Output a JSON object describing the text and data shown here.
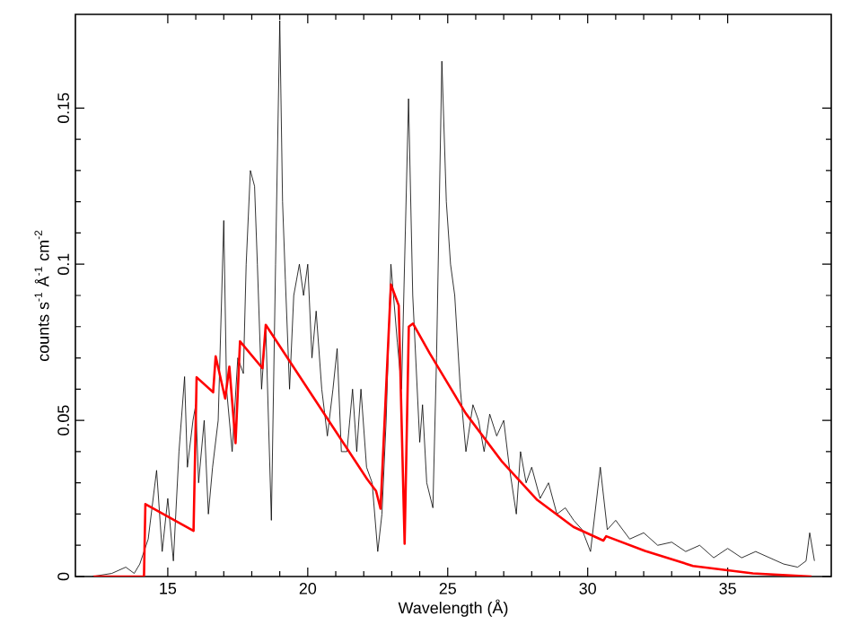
{
  "chart_data": {
    "type": "line",
    "xlabel": "Wavelength (Å)",
    "ylabel": "counts s$^{-1}$ Å$^{-1}$ cm$^{-2}$",
    "xlim": [
      11.7,
      38.7
    ],
    "ylim": [
      0,
      0.18
    ],
    "xticks": [
      15,
      20,
      25,
      30,
      35
    ],
    "yticks": [
      0,
      0.05,
      0.1,
      0.15
    ],
    "marker": "none",
    "line_style": "solid",
    "series": [
      {
        "color": "#000000",
        "x": [
          12.3,
          13.0,
          13.5,
          13.8,
          14.0,
          14.3,
          14.6,
          14.8,
          15.0,
          15.2,
          15.4,
          15.6,
          15.7,
          15.9,
          16.0,
          16.1,
          16.3,
          16.45,
          16.6,
          16.8,
          17.0,
          17.1,
          17.3,
          17.5,
          17.7,
          17.8,
          17.95,
          18.1,
          18.2,
          18.35,
          18.5,
          18.7,
          18.85,
          19.0,
          19.1,
          19.2,
          19.35,
          19.5,
          19.7,
          19.85,
          20.0,
          20.15,
          20.3,
          20.5,
          20.7,
          20.9,
          21.05,
          21.2,
          21.4,
          21.6,
          21.75,
          21.9,
          22.1,
          22.3,
          22.5,
          22.65,
          22.8,
          22.97,
          23.2,
          23.35,
          23.6,
          23.75,
          24.0,
          24.1,
          24.25,
          24.47,
          24.6,
          24.79,
          24.95,
          25.1,
          25.25,
          25.45,
          25.65,
          25.9,
          26.1,
          26.3,
          26.5,
          26.75,
          27.0,
          27.2,
          27.45,
          27.6,
          27.8,
          28.0,
          28.3,
          28.6,
          28.9,
          29.2,
          29.5,
          29.8,
          30.1,
          30.45,
          30.7,
          31.0,
          31.5,
          32.0,
          32.5,
          33.0,
          33.5,
          34.0,
          34.5,
          35.0,
          35.5,
          36.0,
          36.5,
          37.0,
          37.5,
          37.8,
          37.93,
          38.1
        ],
        "values": [
          0.0,
          0.001,
          0.003,
          0.001,
          0.004,
          0.012,
          0.034,
          0.008,
          0.025,
          0.005,
          0.04,
          0.064,
          0.035,
          0.05,
          0.055,
          0.03,
          0.05,
          0.02,
          0.035,
          0.05,
          0.114,
          0.06,
          0.04,
          0.07,
          0.065,
          0.1,
          0.13,
          0.125,
          0.1,
          0.06,
          0.08,
          0.018,
          0.1,
          0.178,
          0.12,
          0.095,
          0.06,
          0.09,
          0.1,
          0.09,
          0.1,
          0.07,
          0.085,
          0.06,
          0.045,
          0.06,
          0.073,
          0.04,
          0.04,
          0.06,
          0.04,
          0.06,
          0.035,
          0.03,
          0.008,
          0.02,
          0.05,
          0.1,
          0.075,
          0.06,
          0.153,
          0.09,
          0.043,
          0.055,
          0.03,
          0.022,
          0.07,
          0.165,
          0.12,
          0.1,
          0.09,
          0.06,
          0.04,
          0.055,
          0.05,
          0.04,
          0.052,
          0.045,
          0.05,
          0.035,
          0.02,
          0.04,
          0.03,
          0.035,
          0.025,
          0.03,
          0.02,
          0.022,
          0.018,
          0.015,
          0.008,
          0.035,
          0.015,
          0.018,
          0.012,
          0.014,
          0.01,
          0.011,
          0.008,
          0.01,
          0.006,
          0.009,
          0.006,
          0.008,
          0.006,
          0.004,
          0.003,
          0.005,
          0.014,
          0.005
        ]
      },
      {
        "color": "#ff0000",
        "x": [
          12.35,
          14.15,
          14.2,
          15.92,
          16.03,
          16.62,
          16.71,
          17.05,
          17.2,
          17.42,
          17.58,
          18.38,
          18.5,
          22.12,
          22.44,
          22.6,
          22.97,
          23.25,
          23.46,
          23.61,
          23.76,
          24.36,
          25.64,
          26.92,
          28.2,
          29.49,
          30.56,
          30.66,
          32.05,
          33.76,
          35.9,
          38.0
        ],
        "values": [
          0.0,
          0.0,
          0.0232,
          0.0146,
          0.0638,
          0.059,
          0.0705,
          0.057,
          0.0672,
          0.0427,
          0.0753,
          0.0667,
          0.0806,
          0.0312,
          0.0274,
          0.0217,
          0.0935,
          0.0868,
          0.0105,
          0.08,
          0.081,
          0.0714,
          0.0523,
          0.037,
          0.0245,
          0.0159,
          0.0115,
          0.0129,
          0.0082,
          0.0034,
          0.001,
          0.0
        ]
      }
    ]
  }
}
